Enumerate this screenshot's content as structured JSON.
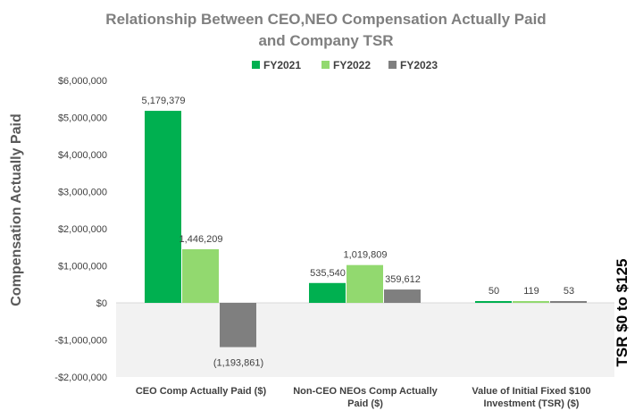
{
  "chart_data": {
    "type": "bar",
    "title_line1": "Relationship Between CEO,NEO Compensation Actually Paid",
    "title_line2": "and Company TSR",
    "ylabel": "Compensation Actually Paid",
    "y2label": "TSR $0 to $125",
    "ylim": [
      -2000000,
      6000000
    ],
    "yticks": [
      {
        "value": 6000000,
        "label": "$6,000,000"
      },
      {
        "value": 5000000,
        "label": "$5,000,000"
      },
      {
        "value": 4000000,
        "label": "$4,000,000"
      },
      {
        "value": 3000000,
        "label": "$3,000,000"
      },
      {
        "value": 2000000,
        "label": "$2,000,000"
      },
      {
        "value": 1000000,
        "label": "$1,000,000"
      },
      {
        "value": 0,
        "label": "$0"
      },
      {
        "value": -1000000,
        "label": "-$1,000,000"
      },
      {
        "value": -2000000,
        "label": "-$2,000,000"
      }
    ],
    "categories": [
      {
        "line1": "CEO Comp Actually Paid ($)",
        "line2": ""
      },
      {
        "line1": "Non-CEO NEOs Comp Actually",
        "line2": "Paid ($)"
      },
      {
        "line1": "Value of Initial Fixed $100",
        "line2": "Investment (TSR) ($)"
      }
    ],
    "series": [
      {
        "name": "FY2021",
        "color": "#00b050",
        "values": [
          5179379,
          535540,
          50
        ],
        "labels": [
          "5,179,379",
          "535,540",
          "50"
        ]
      },
      {
        "name": "FY2022",
        "color": "#92d96f",
        "values": [
          1446209,
          1019809,
          119
        ],
        "labels": [
          "1,446,209",
          "1,019,809",
          "119"
        ]
      },
      {
        "name": "FY2023",
        "color": "#7f7f7f",
        "values": [
          -1193861,
          359612,
          53
        ],
        "labels": [
          "(1,193,861)",
          "359,612",
          "53"
        ]
      }
    ]
  }
}
